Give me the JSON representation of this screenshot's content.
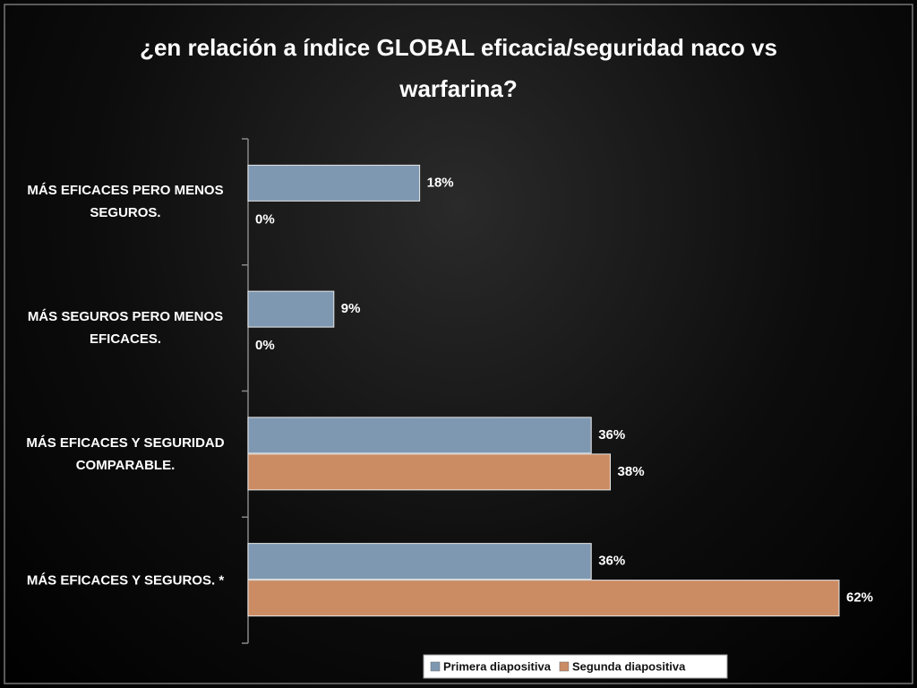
{
  "chart_data": {
    "type": "bar",
    "orientation": "horizontal",
    "title": "¿en relación a índice GLOBAL eficacia/seguridad naco vs warfarina?",
    "categories": [
      "MÁS EFICACES PERO MENOS SEGUROS.",
      "MÁS SEGUROS PERO MENOS EFICACES.",
      "MÁS EFICACES Y SEGURIDAD COMPARABLE.",
      "MÁS EFICACES Y SEGUROS. *"
    ],
    "series": [
      {
        "name": "Primera diapositiva",
        "color": "#7f98b2",
        "values": [
          18,
          9,
          36,
          36
        ],
        "value_labels": [
          "18%",
          "9%",
          "36%",
          "36%"
        ]
      },
      {
        "name": "Segunda diapositiva",
        "color": "#cc8c63",
        "values": [
          0,
          0,
          38,
          62
        ],
        "value_labels": [
          "0%",
          "0%",
          "38%",
          "62%"
        ]
      }
    ],
    "legend": "bottom"
  }
}
